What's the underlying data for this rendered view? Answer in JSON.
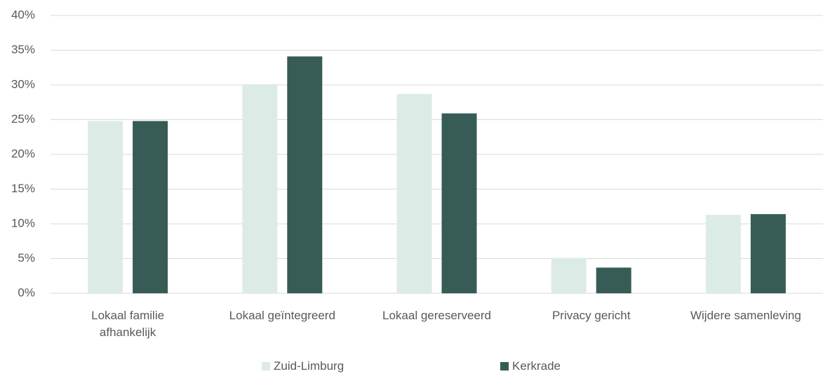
{
  "chart_data": {
    "type": "bar",
    "categories": [
      "Lokaal familie\nafhankelijk",
      "Lokaal geïntegreerd",
      "Lokaal gereserveerd",
      "Privacy gericht",
      "Wijdere samenleving"
    ],
    "series": [
      {
        "name": "Zuid-Limburg",
        "color": "#ddebe7",
        "values": [
          24.8,
          30.1,
          28.7,
          5.1,
          11.3
        ]
      },
      {
        "name": "Kerkrade",
        "color": "#375c55",
        "values": [
          24.8,
          34.1,
          25.9,
          3.7,
          11.4
        ]
      }
    ],
    "ylim": [
      0,
      40
    ],
    "yticks": [
      {
        "value": 0,
        "label": "0%"
      },
      {
        "value": 5,
        "label": "5%"
      },
      {
        "value": 10,
        "label": "10%"
      },
      {
        "value": 15,
        "label": "15%"
      },
      {
        "value": 20,
        "label": "20%"
      },
      {
        "value": 25,
        "label": "25%"
      },
      {
        "value": 30,
        "label": "30%"
      },
      {
        "value": 35,
        "label": "35%"
      },
      {
        "value": 40,
        "label": "40%"
      }
    ],
    "grid": true,
    "legend": "bottom"
  }
}
